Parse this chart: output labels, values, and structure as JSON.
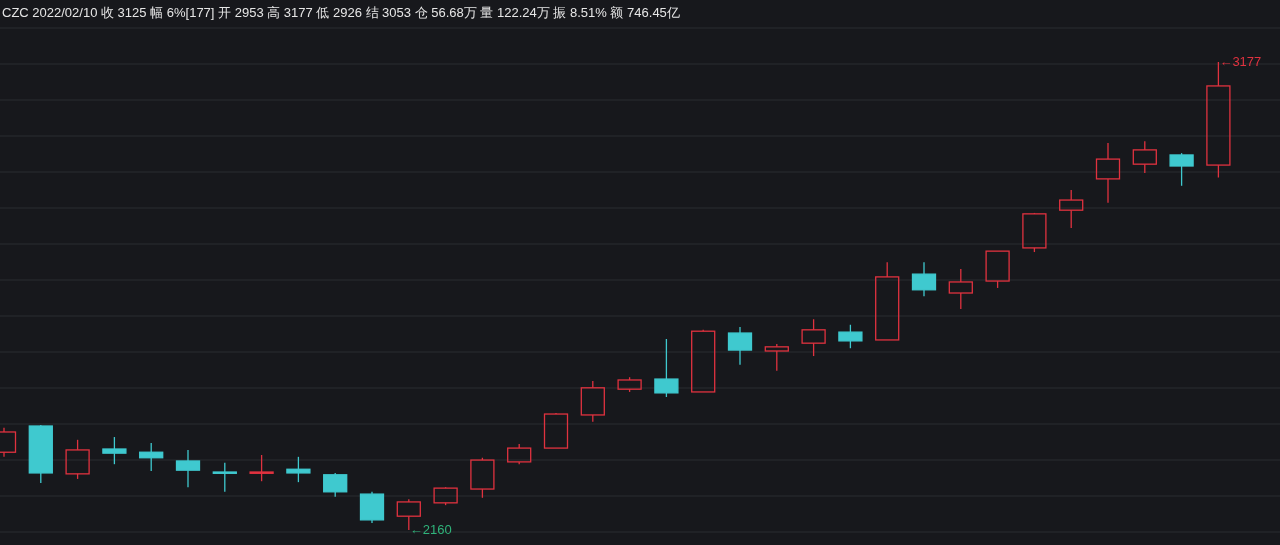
{
  "chart_data": {
    "type": "candlestick",
    "title": "CZC 2022/02/10  收 3125  幅 6%[177]  开 2953  高 3177  低 2926  结 3053  仓 56.68万  量 122.24万  振 8.51%  额 746.45亿",
    "categories": [
      null,
      null,
      null,
      null,
      null,
      null,
      null,
      null,
      null,
      null,
      null,
      null,
      null,
      null,
      null,
      null,
      null,
      null,
      null,
      null,
      null,
      null,
      null,
      null,
      null,
      null,
      null,
      null,
      null,
      null,
      null,
      null,
      null,
      null
    ],
    "ohlc": [
      [
        2329,
        2382,
        2319,
        2373
      ],
      [
        2386,
        2388,
        2262,
        2284
      ],
      [
        2282,
        2356,
        2271,
        2334
      ],
      [
        2336,
        2362,
        2303,
        2327
      ],
      [
        2329,
        2349,
        2288,
        2317
      ],
      [
        2310,
        2334,
        2253,
        2290
      ],
      [
        2286,
        2306,
        2243,
        2284
      ],
      [
        2284,
        2323,
        2266,
        2286
      ],
      [
        2292,
        2319,
        2264,
        2284
      ],
      [
        2280,
        2284,
        2232,
        2243
      ],
      [
        2238,
        2243,
        2175,
        2182
      ],
      [
        2190,
        2227,
        2160,
        2221
      ],
      [
        2219,
        2253,
        2214,
        2251
      ],
      [
        2249,
        2317,
        2230,
        2312
      ],
      [
        2308,
        2347,
        2303,
        2338
      ],
      [
        2338,
        2414,
        2338,
        2412
      ],
      [
        2410,
        2484,
        2395,
        2469
      ],
      [
        2466,
        2492,
        2460,
        2486
      ],
      [
        2488,
        2575,
        2449,
        2458
      ],
      [
        2460,
        2595,
        2460,
        2592
      ],
      [
        2588,
        2601,
        2519,
        2551
      ],
      [
        2549,
        2564,
        2506,
        2558
      ],
      [
        2566,
        2618,
        2538,
        2595
      ],
      [
        2590,
        2606,
        2555,
        2571
      ],
      [
        2573,
        2742,
        2573,
        2710
      ],
      [
        2716,
        2742,
        2668,
        2682
      ],
      [
        2675,
        2727,
        2640,
        2699
      ],
      [
        2701,
        2766,
        2686,
        2766
      ],
      [
        2773,
        2849,
        2764,
        2847
      ],
      [
        2855,
        2899,
        2816,
        2877
      ],
      [
        2923,
        3001,
        2871,
        2966
      ],
      [
        2955,
        3005,
        2936,
        2986
      ],
      [
        2975,
        2979,
        2908,
        2951
      ],
      [
        2953,
        3177,
        2926,
        3125
      ]
    ],
    "colors": [
      "#e0323f",
      "#3fc9cf",
      "#e0323f",
      "#3fc9cf",
      "#3fc9cf",
      "#3fc9cf",
      "#3fc9cf",
      "#e0323f",
      "#3fc9cf",
      "#3fc9cf",
      "#3fc9cf",
      "#e0323f",
      "#e0323f",
      "#e0323f",
      "#e0323f",
      "#e0323f",
      "#e0323f",
      "#e0323f",
      "#3fc9cf",
      "#e0323f",
      "#3fc9cf",
      "#e0323f",
      "#e0323f",
      "#3fc9cf",
      "#e0323f",
      "#3fc9cf",
      "#e0323f",
      "#e0323f",
      "#e0323f",
      "#e0323f",
      "#e0323f",
      "#e0323f",
      "#3fc9cf",
      "#e0323f"
    ],
    "annotations": [
      "←3177",
      "←2160"
    ],
    "grid": "y"
  }
}
